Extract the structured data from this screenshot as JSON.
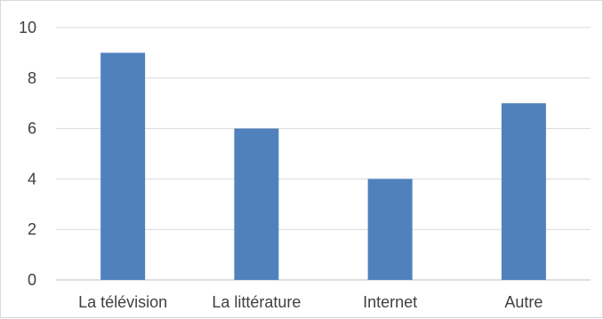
{
  "chart_data": {
    "type": "bar",
    "title": "",
    "xlabel": "",
    "ylabel": "",
    "categories": [
      "La télévision",
      "La littérature",
      "Internet",
      "Autre"
    ],
    "values": [
      9,
      6,
      4,
      7
    ],
    "ylim": [
      0,
      10
    ],
    "yticks": [
      "0",
      "2",
      "4",
      "6",
      "8",
      "10"
    ],
    "grid": true,
    "legend": "none",
    "colors": {
      "bar": "#4f81bd",
      "grid": "#d9d9d9",
      "axis": "#bfbfbf",
      "text": "#404040"
    }
  }
}
